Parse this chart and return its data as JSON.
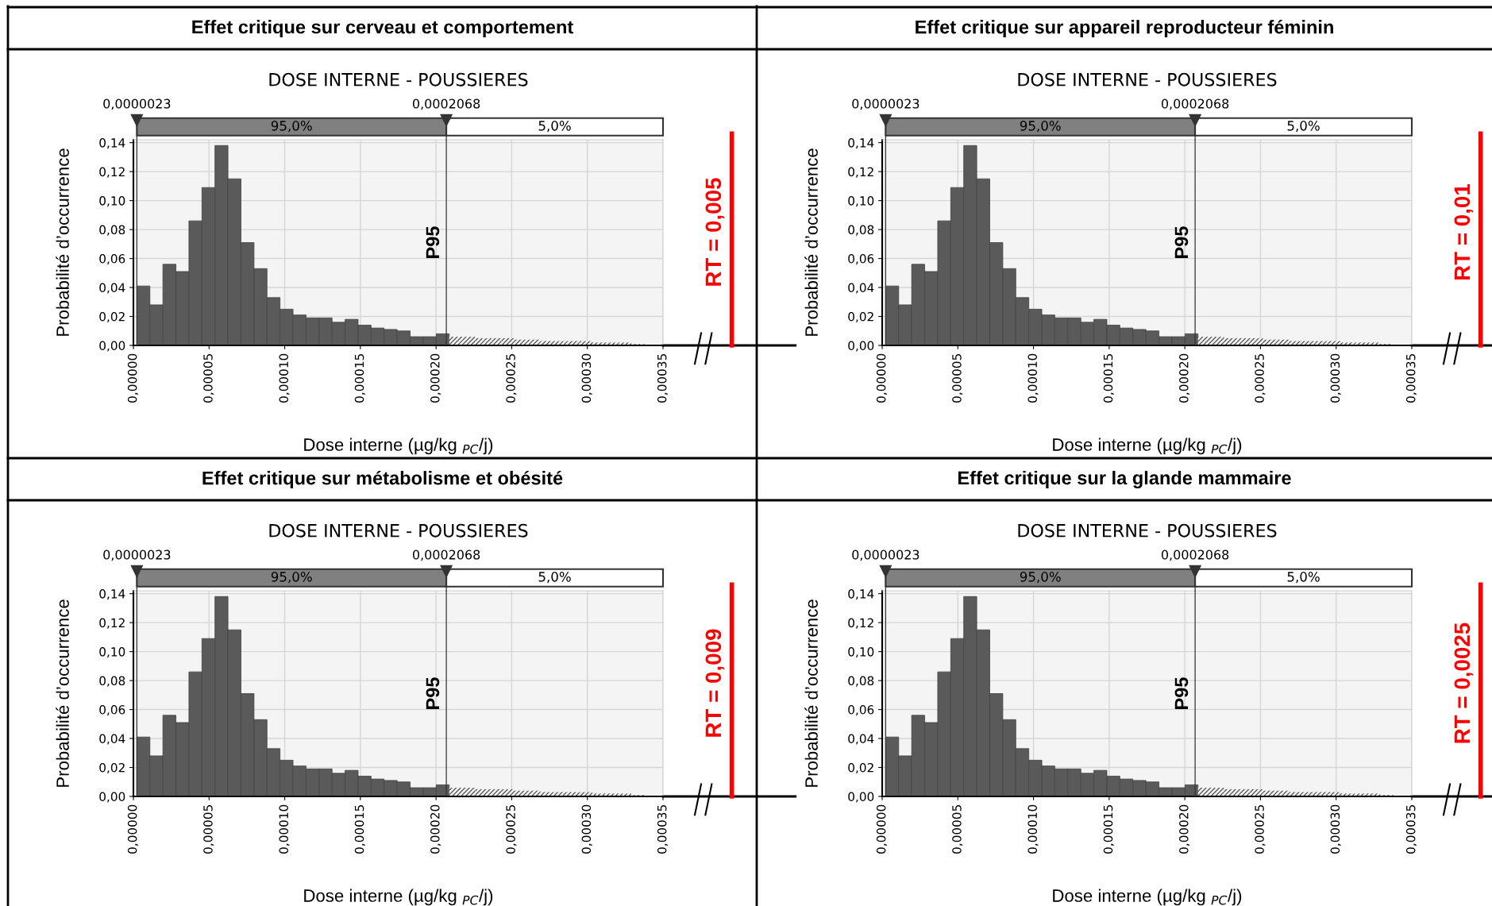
{
  "chart_data": [
    {
      "type": "histogram",
      "title": "Effet critique sur cerveau et comportement",
      "subtitle": "DOSE INTERNE - POUSSIERES",
      "xlabel": "Dose interne (µg/kg $_{PC}$/j)",
      "ylabel": "Probabilité d’occurrence",
      "color": "#5a5a5a",
      "bins": [
        2.3e-06,
        1.09e-05,
        1.95e-05,
        2.81e-05,
        3.67e-05,
        4.53e-05,
        5.39e-05,
        6.25e-05,
        7.11e-05,
        7.97e-05,
        8.83e-05,
        9.69e-05,
        0.0001055,
        0.0001141,
        0.0001227,
        0.0001313,
        0.0001399,
        0.0001485,
        0.0001571,
        0.0001657,
        0.0001743,
        0.0001829,
        0.0001915,
        0.0002001,
        0.0002087,
        0.0002173,
        0.0002259,
        0.0002345,
        0.0002431,
        0.0002517,
        0.0002603,
        0.0002689,
        0.0002775,
        0.0002861,
        0.0002947,
        0.0003033,
        0.0003119,
        0.0003205,
        0.0003291,
        0.0003377
      ],
      "values": [
        0.041,
        0.028,
        0.056,
        0.051,
        0.086,
        0.109,
        0.138,
        0.115,
        0.071,
        0.053,
        0.033,
        0.025,
        0.021,
        0.019,
        0.019,
        0.016,
        0.018,
        0.014,
        0.012,
        0.011,
        0.01,
        0.006,
        0.006,
        0.008,
        0.006,
        0.006,
        0.005,
        0.005,
        0.005,
        0.004,
        0.004,
        0.003,
        0.003,
        0.003,
        0.003,
        0.002,
        0.002,
        0.002,
        0.001
      ],
      "xlim": [
        0,
        0.00035
      ],
      "ylim": [
        0,
        0.142
      ],
      "xticks": [
        {
          "value": 0,
          "label": "0,00000"
        },
        {
          "value": 5e-05,
          "label": "0,00005"
        },
        {
          "value": 0.0001,
          "label": "0,00010"
        },
        {
          "value": 0.00015,
          "label": "0,00015"
        },
        {
          "value": 0.0002,
          "label": "0,00020"
        },
        {
          "value": 0.00025,
          "label": "0,00025"
        },
        {
          "value": 0.0003,
          "label": "0,00030"
        },
        {
          "value": 0.00035,
          "label": "0,00035"
        }
      ],
      "yticks": [
        {
          "value": 0,
          "label": "0,00"
        },
        {
          "value": 0.02,
          "label": "0,02"
        },
        {
          "value": 0.04,
          "label": "0,04"
        },
        {
          "value": 0.06,
          "label": "0,06"
        },
        {
          "value": 0.08,
          "label": "0,08"
        },
        {
          "value": 0.1,
          "label": "0,10"
        },
        {
          "value": 0.12,
          "label": "0,12"
        },
        {
          "value": 0.14,
          "label": "0,14"
        }
      ],
      "ref_lines": [
        {
          "axis": "x",
          "value": 2.3e-06,
          "label": "0,0000023",
          "color": "#333333"
        },
        {
          "axis": "x",
          "value": 0.0002068,
          "label": "0,0002068",
          "color": "#333333"
        }
      ],
      "annotations": [
        "P95",
        "95,0%",
        "5,0%",
        "RT = 0,005"
      ],
      "grid": true
    },
    {
      "type": "histogram",
      "title": "Effet critique sur appareil reproducteur féminin",
      "subtitle": "DOSE INTERNE - POUSSIERES",
      "xlabel": "Dose interne (µg/kg $_{PC}$/j)",
      "ylabel": "Probabilité d’occurrence",
      "color": "#5a5a5a",
      "bins": [
        2.3e-06,
        1.09e-05,
        1.95e-05,
        2.81e-05,
        3.67e-05,
        4.53e-05,
        5.39e-05,
        6.25e-05,
        7.11e-05,
        7.97e-05,
        8.83e-05,
        9.69e-05,
        0.0001055,
        0.0001141,
        0.0001227,
        0.0001313,
        0.0001399,
        0.0001485,
        0.0001571,
        0.0001657,
        0.0001743,
        0.0001829,
        0.0001915,
        0.0002001,
        0.0002087,
        0.0002173,
        0.0002259,
        0.0002345,
        0.0002431,
        0.0002517,
        0.0002603,
        0.0002689,
        0.0002775,
        0.0002861,
        0.0002947,
        0.0003033,
        0.0003119,
        0.0003205,
        0.0003291,
        0.0003377
      ],
      "values": [
        0.041,
        0.028,
        0.056,
        0.051,
        0.086,
        0.109,
        0.138,
        0.115,
        0.071,
        0.053,
        0.033,
        0.025,
        0.021,
        0.019,
        0.019,
        0.016,
        0.018,
        0.014,
        0.012,
        0.011,
        0.01,
        0.006,
        0.006,
        0.008,
        0.006,
        0.006,
        0.005,
        0.005,
        0.005,
        0.004,
        0.004,
        0.003,
        0.003,
        0.003,
        0.003,
        0.002,
        0.002,
        0.002,
        0.001
      ],
      "xlim": [
        0,
        0.00035
      ],
      "ylim": [
        0,
        0.142
      ],
      "xticks": [
        {
          "value": 0,
          "label": "0,00000"
        },
        {
          "value": 5e-05,
          "label": "0,00005"
        },
        {
          "value": 0.0001,
          "label": "0,00010"
        },
        {
          "value": 0.00015,
          "label": "0,00015"
        },
        {
          "value": 0.0002,
          "label": "0,00020"
        },
        {
          "value": 0.00025,
          "label": "0,00025"
        },
        {
          "value": 0.0003,
          "label": "0,00030"
        },
        {
          "value": 0.00035,
          "label": "0,00035"
        }
      ],
      "yticks": [
        {
          "value": 0,
          "label": "0,00"
        },
        {
          "value": 0.02,
          "label": "0,02"
        },
        {
          "value": 0.04,
          "label": "0,04"
        },
        {
          "value": 0.06,
          "label": "0,06"
        },
        {
          "value": 0.08,
          "label": "0,08"
        },
        {
          "value": 0.1,
          "label": "0,10"
        },
        {
          "value": 0.12,
          "label": "0,12"
        },
        {
          "value": 0.14,
          "label": "0,14"
        }
      ],
      "ref_lines": [
        {
          "axis": "x",
          "value": 2.3e-06,
          "label": "0,0000023",
          "color": "#333333"
        },
        {
          "axis": "x",
          "value": 0.0002068,
          "label": "0,0002068",
          "color": "#333333"
        }
      ],
      "annotations": [
        "P95",
        "95,0%",
        "5,0%",
        "RT = 0,01"
      ],
      "grid": true
    },
    {
      "type": "histogram",
      "title": "Effet critique sur métabolisme et obésité",
      "subtitle": "DOSE INTERNE - POUSSIERES",
      "xlabel": "Dose interne (µg/kg $_{PC}$/j)",
      "ylabel": "Probabilité d’occurrence",
      "color": "#5a5a5a",
      "bins": [
        2.3e-06,
        1.09e-05,
        1.95e-05,
        2.81e-05,
        3.67e-05,
        4.53e-05,
        5.39e-05,
        6.25e-05,
        7.11e-05,
        7.97e-05,
        8.83e-05,
        9.69e-05,
        0.0001055,
        0.0001141,
        0.0001227,
        0.0001313,
        0.0001399,
        0.0001485,
        0.0001571,
        0.0001657,
        0.0001743,
        0.0001829,
        0.0001915,
        0.0002001,
        0.0002087,
        0.0002173,
        0.0002259,
        0.0002345,
        0.0002431,
        0.0002517,
        0.0002603,
        0.0002689,
        0.0002775,
        0.0002861,
        0.0002947,
        0.0003033,
        0.0003119,
        0.0003205,
        0.0003291,
        0.0003377
      ],
      "values": [
        0.041,
        0.028,
        0.056,
        0.051,
        0.086,
        0.109,
        0.138,
        0.115,
        0.071,
        0.053,
        0.033,
        0.025,
        0.021,
        0.019,
        0.019,
        0.016,
        0.018,
        0.014,
        0.012,
        0.011,
        0.01,
        0.006,
        0.006,
        0.008,
        0.006,
        0.006,
        0.005,
        0.005,
        0.005,
        0.004,
        0.004,
        0.003,
        0.003,
        0.003,
        0.003,
        0.002,
        0.002,
        0.002,
        0.001
      ],
      "xlim": [
        0,
        0.00035
      ],
      "ylim": [
        0,
        0.142
      ],
      "xticks": [
        {
          "value": 0,
          "label": "0,00000"
        },
        {
          "value": 5e-05,
          "label": "0,00005"
        },
        {
          "value": 0.0001,
          "label": "0,00010"
        },
        {
          "value": 0.00015,
          "label": "0,00015"
        },
        {
          "value": 0.0002,
          "label": "0,00020"
        },
        {
          "value": 0.00025,
          "label": "0,00025"
        },
        {
          "value": 0.0003,
          "label": "0,00030"
        },
        {
          "value": 0.00035,
          "label": "0,00035"
        }
      ],
      "yticks": [
        {
          "value": 0,
          "label": "0,00"
        },
        {
          "value": 0.02,
          "label": "0,02"
        },
        {
          "value": 0.04,
          "label": "0,04"
        },
        {
          "value": 0.06,
          "label": "0,06"
        },
        {
          "value": 0.08,
          "label": "0,08"
        },
        {
          "value": 0.1,
          "label": "0,10"
        },
        {
          "value": 0.12,
          "label": "0,12"
        },
        {
          "value": 0.14,
          "label": "0,14"
        }
      ],
      "ref_lines": [
        {
          "axis": "x",
          "value": 2.3e-06,
          "label": "0,0000023",
          "color": "#333333"
        },
        {
          "axis": "x",
          "value": 0.0002068,
          "label": "0,0002068",
          "color": "#333333"
        }
      ],
      "annotations": [
        "P95",
        "95,0%",
        "5,0%",
        "RT = 0,009"
      ],
      "grid": true
    },
    {
      "type": "histogram",
      "title": "Effet critique sur la glande mammaire",
      "subtitle": "DOSE INTERNE - POUSSIERES",
      "xlabel": "Dose interne (µg/kg $_{PC}$/j)",
      "ylabel": "Probabilité d’occurrence",
      "color": "#5a5a5a",
      "bins": [
        2.3e-06,
        1.09e-05,
        1.95e-05,
        2.81e-05,
        3.67e-05,
        4.53e-05,
        5.39e-05,
        6.25e-05,
        7.11e-05,
        7.97e-05,
        8.83e-05,
        9.69e-05,
        0.0001055,
        0.0001141,
        0.0001227,
        0.0001313,
        0.0001399,
        0.0001485,
        0.0001571,
        0.0001657,
        0.0001743,
        0.0001829,
        0.0001915,
        0.0002001,
        0.0002087,
        0.0002173,
        0.0002259,
        0.0002345,
        0.0002431,
        0.0002517,
        0.0002603,
        0.0002689,
        0.0002775,
        0.0002861,
        0.0002947,
        0.0003033,
        0.0003119,
        0.0003205,
        0.0003291,
        0.0003377
      ],
      "values": [
        0.041,
        0.028,
        0.056,
        0.051,
        0.086,
        0.109,
        0.138,
        0.115,
        0.071,
        0.053,
        0.033,
        0.025,
        0.021,
        0.019,
        0.019,
        0.016,
        0.018,
        0.014,
        0.012,
        0.011,
        0.01,
        0.006,
        0.006,
        0.008,
        0.006,
        0.006,
        0.005,
        0.005,
        0.005,
        0.004,
        0.004,
        0.003,
        0.003,
        0.003,
        0.003,
        0.002,
        0.002,
        0.002,
        0.001
      ],
      "xlim": [
        0,
        0.00035
      ],
      "ylim": [
        0,
        0.142
      ],
      "xticks": [
        {
          "value": 0,
          "label": "0,00000"
        },
        {
          "value": 5e-05,
          "label": "0,00005"
        },
        {
          "value": 0.0001,
          "label": "0,00010"
        },
        {
          "value": 0.00015,
          "label": "0,00015"
        },
        {
          "value": 0.0002,
          "label": "0,00020"
        },
        {
          "value": 0.00025,
          "label": "0,00025"
        },
        {
          "value": 0.0003,
          "label": "0,00030"
        },
        {
          "value": 0.00035,
          "label": "0,00035"
        }
      ],
      "yticks": [
        {
          "value": 0,
          "label": "0,00"
        },
        {
          "value": 0.02,
          "label": "0,02"
        },
        {
          "value": 0.04,
          "label": "0,04"
        },
        {
          "value": 0.06,
          "label": "0,06"
        },
        {
          "value": 0.08,
          "label": "0,08"
        },
        {
          "value": 0.1,
          "label": "0,10"
        },
        {
          "value": 0.12,
          "label": "0,12"
        },
        {
          "value": 0.14,
          "label": "0,14"
        }
      ],
      "ref_lines": [
        {
          "axis": "x",
          "value": 2.3e-06,
          "label": "0,0000023",
          "color": "#333333"
        },
        {
          "axis": "x",
          "value": 0.0002068,
          "label": "0,0002068",
          "color": "#333333"
        }
      ],
      "annotations": [
        "P95",
        "95,0%",
        "5,0%",
        "RT = 0,0025"
      ],
      "grid": true
    }
  ]
}
